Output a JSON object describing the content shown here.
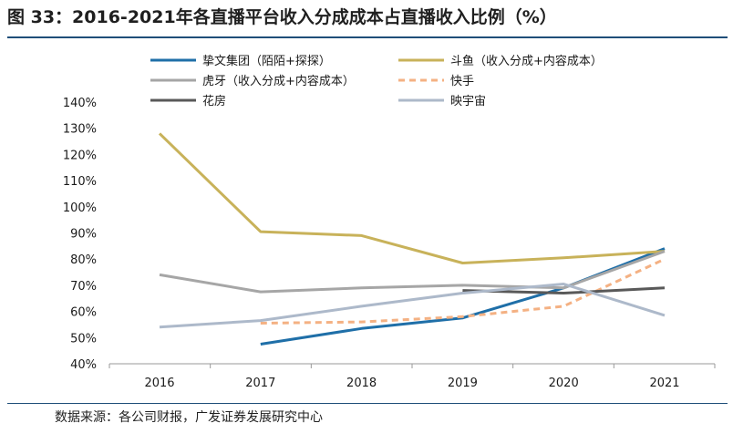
{
  "figure": {
    "title": "图 33：2016-2021年各直播平台收入分成成本占直播收入比例（%）",
    "source": "数据来源：各公司财报，广发证券发展研究中心"
  },
  "chart_data": {
    "type": "line",
    "title": "",
    "xlabel": "",
    "ylabel": "",
    "categories": [
      "2016",
      "2017",
      "2018",
      "2019",
      "2020",
      "2021"
    ],
    "y_ticks": [
      "40%",
      "50%",
      "60%",
      "70%",
      "80%",
      "90%",
      "100%",
      "110%",
      "120%",
      "130%",
      "140%"
    ],
    "ylim": [
      40,
      140
    ],
    "grid": false,
    "legend_position": "top",
    "series": [
      {
        "name": "挚文集团（陌陌+探探）",
        "color": "#1f6fa8",
        "dash": "solid",
        "values": [
          null,
          47.5,
          53.5,
          57.5,
          69,
          84
        ]
      },
      {
        "name": "斗鱼（收入分成+内容成本）",
        "color": "#c8b25a",
        "dash": "solid",
        "values": [
          128,
          90.5,
          89,
          78.5,
          80.5,
          83
        ]
      },
      {
        "name": "虎牙（收入分成+内容成本）",
        "color": "#a6a6a6",
        "dash": "solid",
        "values": [
          74,
          67.5,
          69,
          70,
          69,
          83
        ]
      },
      {
        "name": "快手",
        "color": "#f4b183",
        "dash": "dashed",
        "values": [
          null,
          55.5,
          56,
          58,
          62,
          80
        ]
      },
      {
        "name": "花房",
        "color": "#595959",
        "dash": "solid",
        "values": [
          null,
          null,
          null,
          68,
          67,
          69
        ]
      },
      {
        "name": "映宇宙",
        "color": "#adb9ca",
        "dash": "solid",
        "values": [
          54,
          56.5,
          62,
          67,
          70.5,
          58.5
        ]
      }
    ]
  }
}
